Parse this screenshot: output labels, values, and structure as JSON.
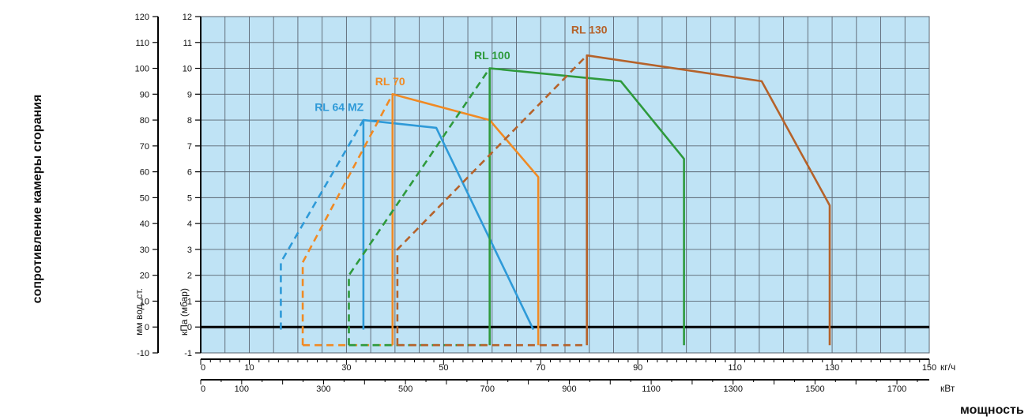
{
  "chart_data": {
    "type": "line",
    "title": "",
    "ylabel_outer": "сопротивление камеры сгорания",
    "ylabel_mm": "мм вод. ст.",
    "ylabel_kpa": "кПа (мбар)",
    "xlabel": "мощность",
    "x_unit_kgh": "кг/ч",
    "x_unit_kw": "кВт",
    "y_mm_ticks": [
      -10,
      0,
      10,
      20,
      30,
      40,
      50,
      60,
      70,
      80,
      90,
      100,
      110,
      120
    ],
    "y_mbar_ticks": [
      -1,
      0,
      1,
      2,
      3,
      4,
      5,
      6,
      7,
      8,
      9,
      10,
      11,
      12
    ],
    "x_kgh_ticks": [
      0,
      10,
      30,
      50,
      70,
      90,
      110,
      130,
      150
    ],
    "x_kw_ticks": [
      0,
      100,
      300,
      500,
      700,
      900,
      1100,
      1300,
      1500,
      1700
    ],
    "xlim_kgh": [
      0,
      150
    ],
    "ylim_mbar": [
      -1,
      12
    ],
    "grid": true,
    "colors": {
      "plot_bg": "#bfe3f5",
      "grid": "#5a6470",
      "axis": "#000000",
      "zero_line": "#000000"
    },
    "series": [
      {
        "name": "RL 64 MZ",
        "color": "#2e9ad8",
        "label_at": [
          28.5,
          8.35
        ],
        "solid": [
          [
            [
              33.5,
              -0.1
            ],
            [
              33.5,
              8.0
            ],
            [
              48.5,
              7.7
            ],
            [
              68.5,
              -0.1
            ]
          ]
        ],
        "dashed": [
          [
            [
              16.5,
              -0.1
            ],
            [
              16.5,
              2.5
            ],
            [
              33.5,
              8.0
            ]
          ]
        ]
      },
      {
        "name": "RL 70",
        "color": "#f08a24",
        "label_at": [
          39.0,
          9.35
        ],
        "solid": [
          [
            [
              39.5,
              -0.7
            ],
            [
              39.5,
              9.0
            ],
            [
              59.5,
              8.0
            ],
            [
              69.5,
              5.8
            ],
            [
              69.5,
              -0.7
            ]
          ]
        ],
        "dashed": [
          [
            [
              21.0,
              -0.7
            ],
            [
              21.0,
              2.5
            ],
            [
              39.5,
              9.0
            ]
          ],
          [
            [
              21.0,
              -0.7
            ],
            [
              39.5,
              -0.7
            ]
          ]
        ]
      },
      {
        "name": "RL 100",
        "color": "#2e9a3c",
        "label_at": [
          60.0,
          10.35
        ],
        "solid": [
          [
            [
              59.5,
              -0.7
            ],
            [
              59.5,
              10.0
            ],
            [
              86.5,
              9.5
            ],
            [
              99.5,
              6.5
            ],
            [
              99.5,
              -0.7
            ]
          ]
        ],
        "dashed": [
          [
            [
              30.5,
              -0.7
            ],
            [
              30.5,
              2.0
            ],
            [
              59.5,
              10.0
            ]
          ],
          [
            [
              30.5,
              -0.7
            ],
            [
              59.5,
              -0.7
            ]
          ]
        ]
      },
      {
        "name": "RL 130",
        "color": "#b5622a",
        "label_at": [
          80.0,
          11.35
        ],
        "solid": [
          [
            [
              79.5,
              -0.7
            ],
            [
              79.5,
              10.5
            ],
            [
              115.5,
              9.5
            ],
            [
              129.5,
              4.7
            ],
            [
              129.5,
              -0.7
            ]
          ]
        ],
        "dashed": [
          [
            [
              40.5,
              -0.7
            ],
            [
              40.5,
              3.0
            ],
            [
              79.5,
              10.5
            ]
          ],
          [
            [
              40.5,
              -0.7
            ],
            [
              79.5,
              -0.7
            ]
          ]
        ]
      }
    ]
  }
}
